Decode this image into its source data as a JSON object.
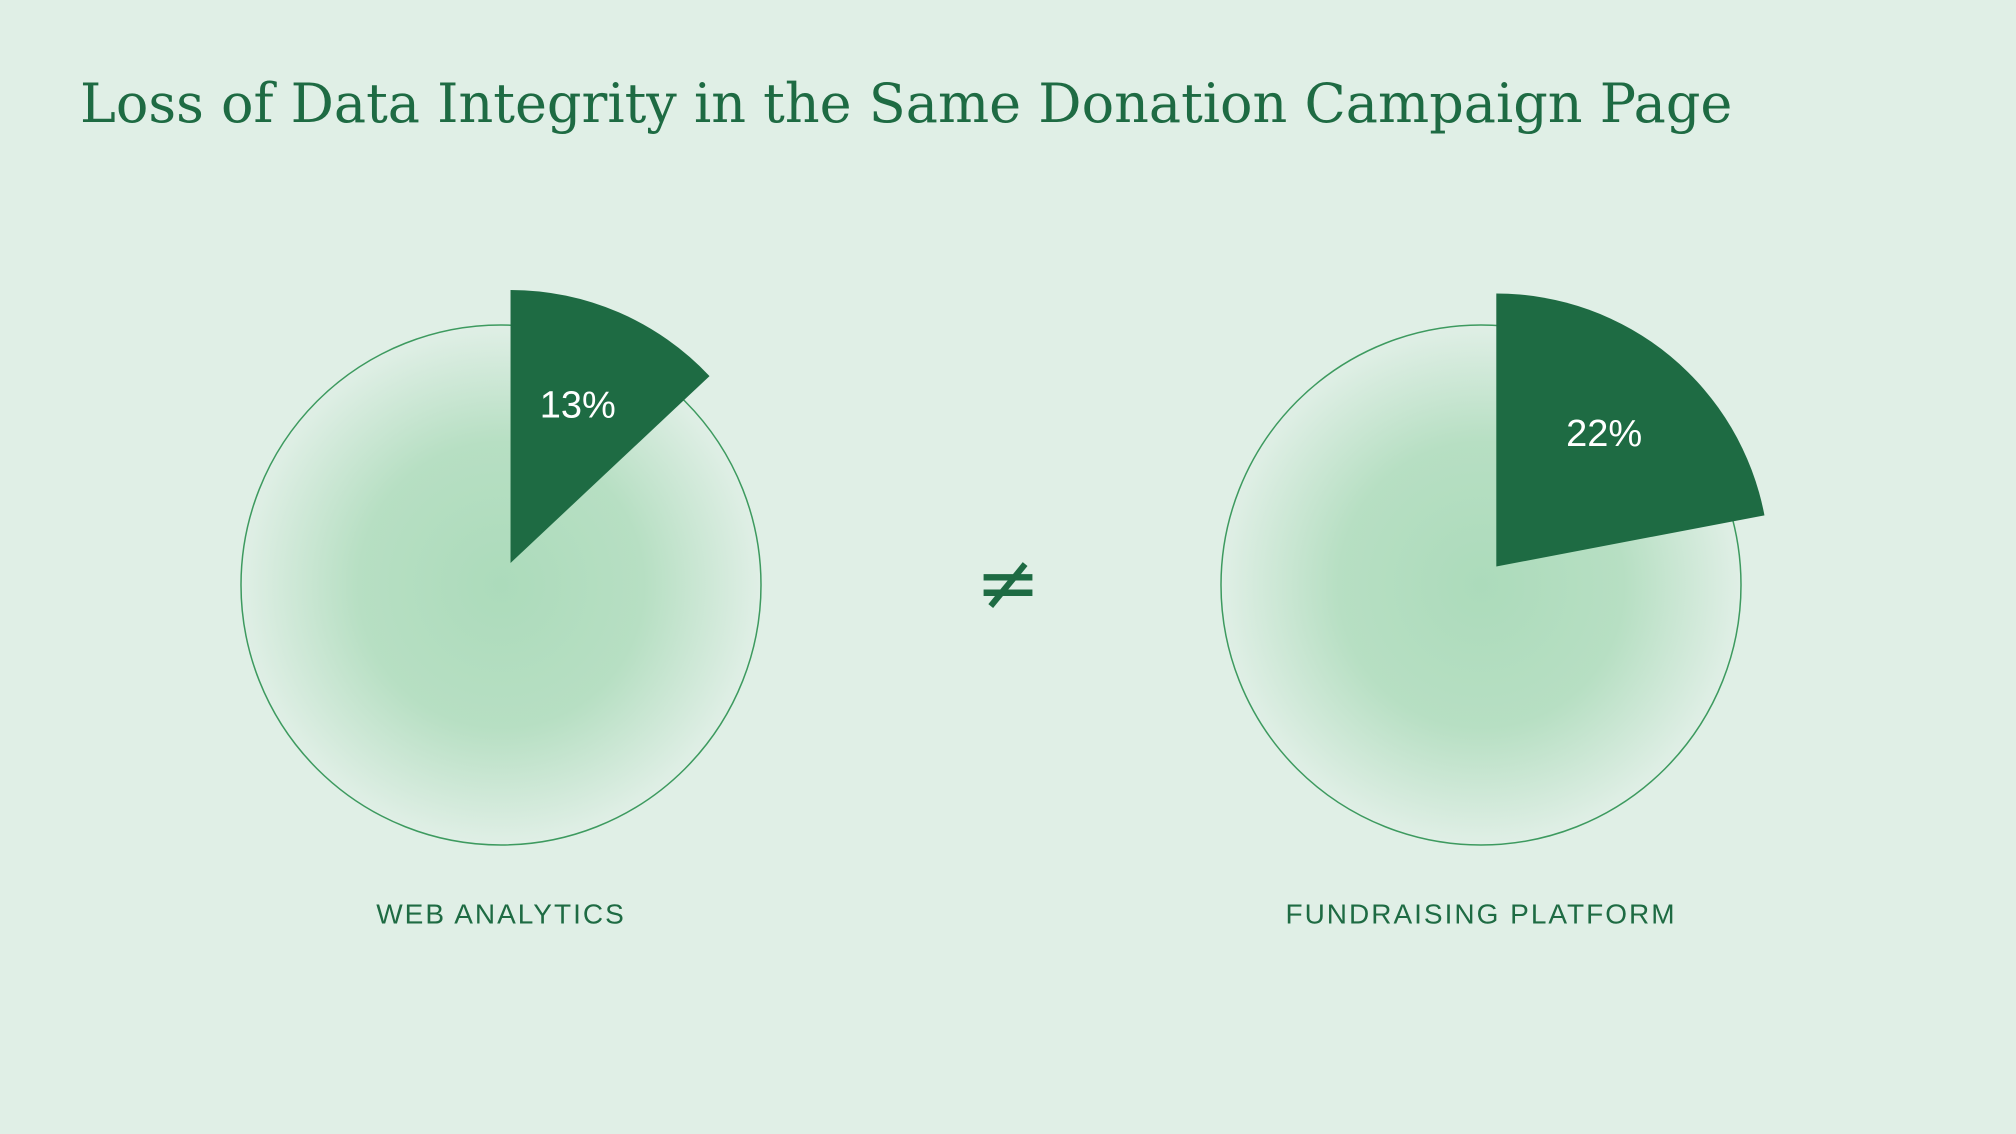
{
  "title": "Loss of Data Integrity in the Same Donation Campaign Page",
  "separator": "≠",
  "chart_data": [
    {
      "type": "pie",
      "title": "WEB ANALYTICS",
      "values": [
        13
      ],
      "value_labels": [
        "13%"
      ],
      "color": "#1e6b43"
    },
    {
      "type": "pie",
      "title": "FUNDRAISING PLATFORM",
      "values": [
        22
      ],
      "value_labels": [
        "22%"
      ],
      "color": "#1e6b43"
    }
  ]
}
